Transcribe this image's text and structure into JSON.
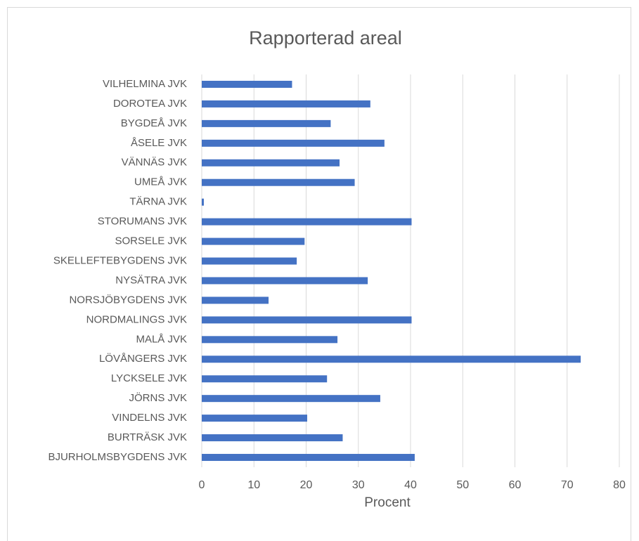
{
  "chart_data": {
    "type": "bar",
    "orientation": "horizontal",
    "title": "Rapporterad areal",
    "x_label": "Procent",
    "categories": [
      "VILHELMINA JVK",
      "DOROTEA JVK",
      "BYGDEÅ JVK",
      "ÅSELE JVK",
      "VÄNNÄS JVK",
      "UMEÅ JVK",
      "TÄRNA JVK",
      "STORUMANS JVK",
      "SORSELE JVK",
      "SKELLEFTEBYGDENS JVK",
      "NYSÄTRA JVK",
      "NORSJÖBYGDENS JVK",
      "NORDMALINGS JVK",
      "MALÅ JVK",
      "LÖVÅNGERS JVK",
      "LYCKSELE JVK",
      "JÖRNS JVK",
      "VINDELNS JVK",
      "BURTRÄSK JVK",
      "BJURHOLMSBYGDENS JVK"
    ],
    "values": [
      17.3,
      32.3,
      24.7,
      35.0,
      26.4,
      29.3,
      0.4,
      40.2,
      19.7,
      18.2,
      31.8,
      12.8,
      40.2,
      26.0,
      72.6,
      24.0,
      34.2,
      20.2,
      27.0,
      40.8
    ],
    "color": "#4472c4",
    "xlim": [
      0,
      80
    ],
    "xticks": [
      0,
      10,
      20,
      30,
      40,
      50,
      60,
      70,
      80
    ],
    "grid": true
  }
}
